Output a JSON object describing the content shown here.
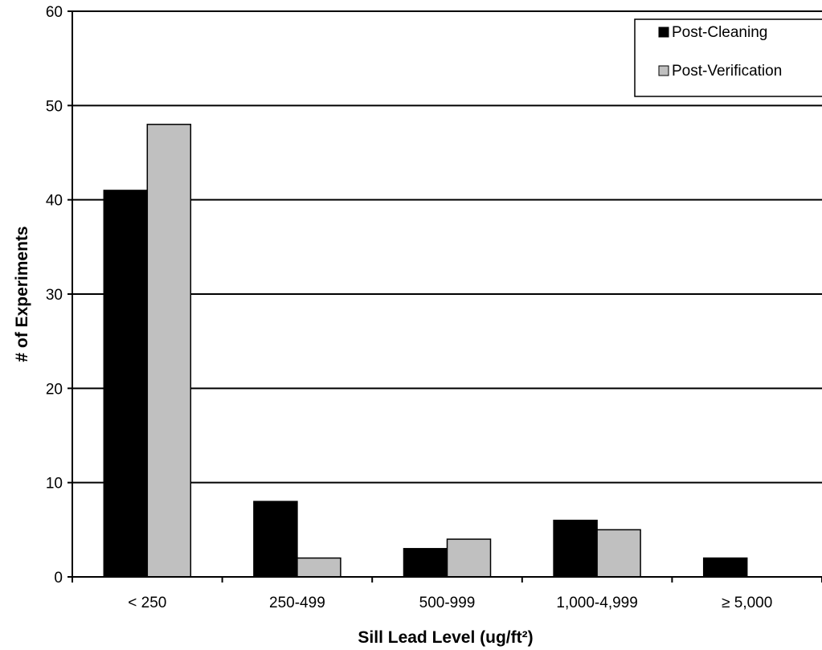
{
  "chart_data": {
    "type": "bar",
    "title": "",
    "xlabel": "Sill Lead Level (ug/ft²)",
    "ylabel": "# of Experiments",
    "categories": [
      "< 250",
      "250-499",
      "500-999",
      "1,000-4,999",
      "≥ 5,000"
    ],
    "series": [
      {
        "name": "Post-Cleaning",
        "color": "#000000",
        "values": [
          41,
          8,
          3,
          6,
          2
        ]
      },
      {
        "name": "Post-Verification",
        "color": "#c0c0c0",
        "values": [
          48,
          2,
          4,
          5,
          0
        ]
      }
    ],
    "ylim": [
      0,
      60
    ],
    "yticks": [
      0,
      10,
      20,
      30,
      40,
      50,
      60
    ],
    "grid": true,
    "legend_position": "top-right"
  }
}
